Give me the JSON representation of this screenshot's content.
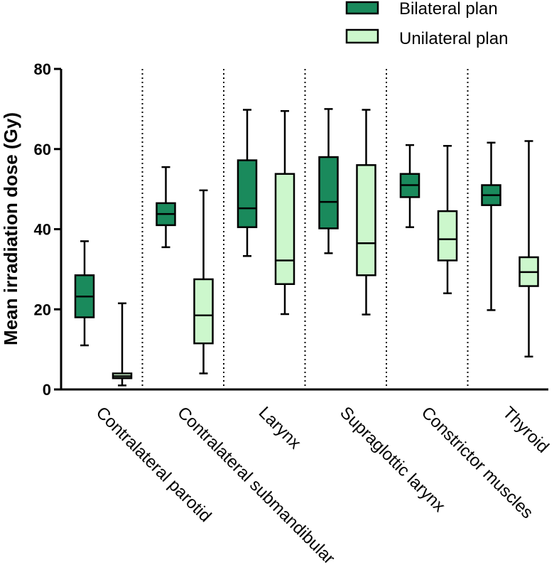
{
  "chart_data": {
    "type": "boxplot",
    "ylabel": "Mean irradiation dose (Gy)",
    "ylim": [
      0,
      80
    ],
    "yticks": [
      "0",
      "20",
      "40",
      "60",
      "80"
    ],
    "legend_position": "top-right",
    "categories": [
      "Contralateral parotid",
      "Contralateral submandibular",
      "Larynx",
      "Supraglottic larynx",
      "Constrictor muscles",
      "Thyroid"
    ],
    "series": [
      {
        "name": "Bilateral plan",
        "color": "#1a8a5c",
        "boxes": [
          {
            "min": 11,
            "q1": 18,
            "median": 23.2,
            "q3": 28.5,
            "max": 37
          },
          {
            "min": 35.5,
            "q1": 41,
            "median": 43.8,
            "q3": 46.5,
            "max": 55.5
          },
          {
            "min": 33.3,
            "q1": 40.5,
            "median": 45.2,
            "q3": 57.2,
            "max": 69.8
          },
          {
            "min": 34,
            "q1": 40.2,
            "median": 46.8,
            "q3": 58,
            "max": 70
          },
          {
            "min": 40.5,
            "q1": 48,
            "median": 51,
            "q3": 53.8,
            "max": 61
          },
          {
            "min": 19.8,
            "q1": 46,
            "median": 48.5,
            "q3": 51,
            "max": 61.6
          }
        ]
      },
      {
        "name": "Unilateral plan",
        "color": "#ccf7cc",
        "boxes": [
          {
            "min": 1,
            "q1": 2.8,
            "median": 3.3,
            "q3": 4,
            "max": 21.5
          },
          {
            "min": 4,
            "q1": 11.5,
            "median": 18.5,
            "q3": 27.5,
            "max": 49.7
          },
          {
            "min": 18.8,
            "q1": 26.3,
            "median": 32.2,
            "q3": 53.8,
            "max": 69.5
          },
          {
            "min": 18.7,
            "q1": 28.5,
            "median": 36.5,
            "q3": 56,
            "max": 69.8
          },
          {
            "min": 24,
            "q1": 32.2,
            "median": 37.5,
            "q3": 44.5,
            "max": 60.8
          },
          {
            "min": 8.2,
            "q1": 25.8,
            "median": 29.3,
            "q3": 33,
            "max": 62
          }
        ]
      }
    ]
  }
}
